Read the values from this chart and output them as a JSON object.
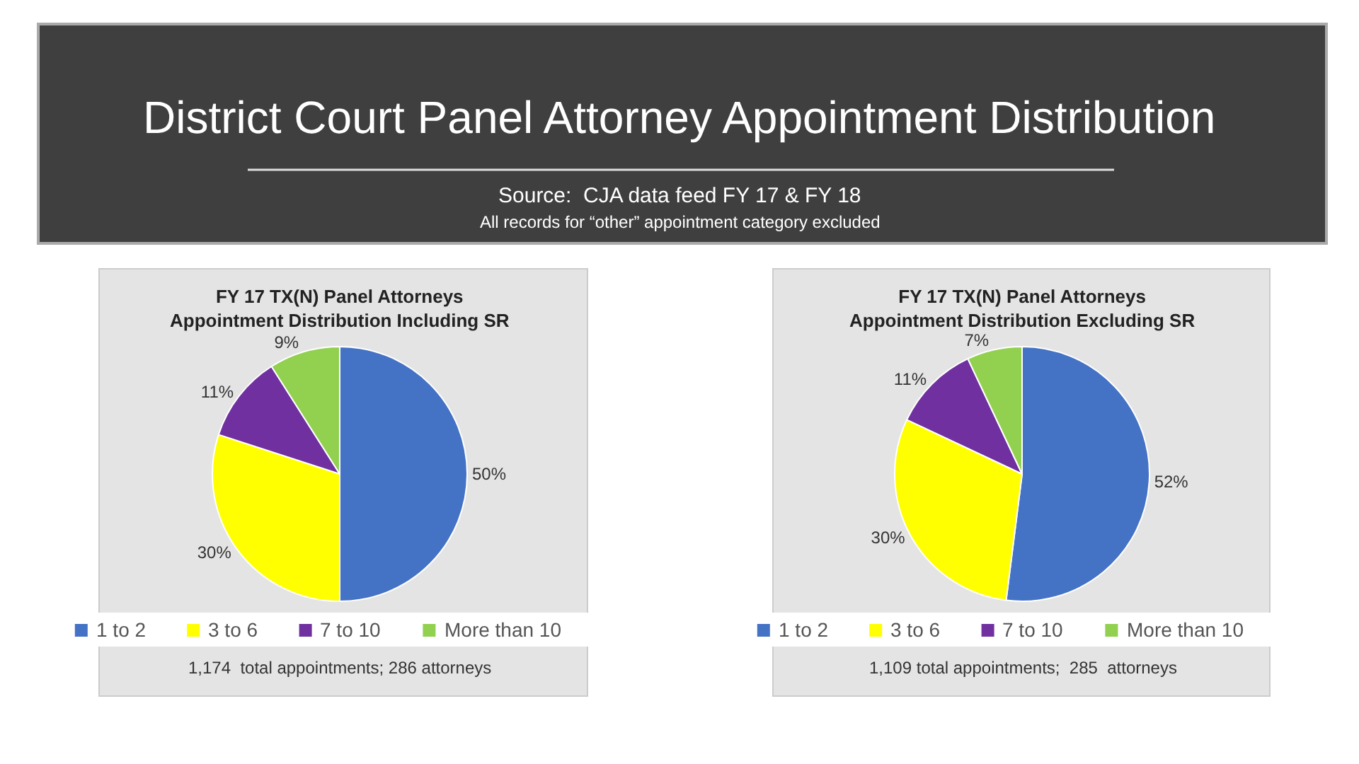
{
  "chart_data": [
    {
      "type": "other",
      "title": "District Court Panel Attorney Appointment Distribution",
      "subtitle": "Source:  CJA data feed FY 17 & FY 18",
      "annotations": [
        "All records for “other” appointment category excluded"
      ]
    },
    {
      "type": "pie",
      "title": "FY 17 TX(N) Panel Attorneys\nAppointment Distribution Including SR",
      "categories": [
        "1 to 2",
        "3 to 6",
        "7 to 10",
        "More than 10"
      ],
      "values": [
        50,
        30,
        11,
        9
      ],
      "value_labels": [
        "50%",
        "30%",
        "11%",
        "9%"
      ],
      "colors": [
        "#4472c4",
        "#ffff00",
        "#7030a0",
        "#92d050"
      ],
      "legend": "bottom",
      "annotations": [
        "1,174  total appointments; 286 attorneys"
      ]
    },
    {
      "type": "pie",
      "title": "FY 17 TX(N) Panel Attorneys\nAppointment Distribution Excluding SR",
      "categories": [
        "1 to 2",
        "3 to 6",
        "7 to 10",
        "More than 10"
      ],
      "values": [
        52,
        30,
        11,
        7
      ],
      "value_labels": [
        "52%",
        "30%",
        "11%",
        "7%"
      ],
      "colors": [
        "#4472c4",
        "#ffff00",
        "#7030a0",
        "#92d050"
      ],
      "legend": "bottom",
      "annotations": [
        "1,109 total appointments;  285  attorneys"
      ]
    }
  ]
}
